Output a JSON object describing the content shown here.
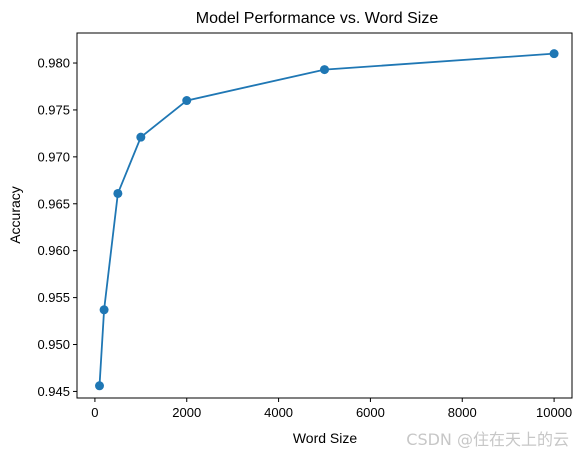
{
  "chart_data": {
    "type": "line",
    "title": "Model Performance vs. Word Size",
    "xlabel": "Word Size",
    "ylabel": "Accuracy",
    "x": [
      100,
      200,
      500,
      1000,
      2000,
      5000,
      10000
    ],
    "series": [
      {
        "values": [
          0.9456,
          0.9537,
          0.9661,
          0.9721,
          0.976,
          0.9793,
          0.981
        ],
        "color": "#1f77b4",
        "marker": "circle"
      }
    ],
    "xlim": [
      -390,
      10390
    ],
    "ylim": [
      0.9443,
      0.9832
    ],
    "xticks": [
      0,
      2000,
      4000,
      6000,
      8000,
      10000
    ],
    "yticks": [
      0.945,
      0.95,
      0.955,
      0.96,
      0.965,
      0.97,
      0.975,
      0.98
    ],
    "grid": false
  },
  "watermark": "CSDN @住在天上的云"
}
